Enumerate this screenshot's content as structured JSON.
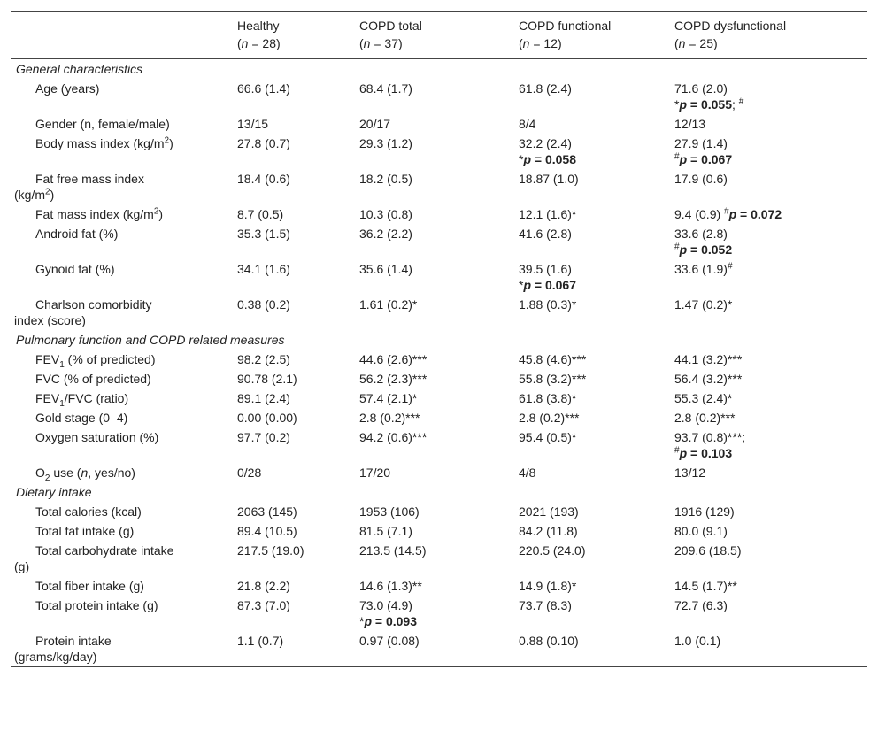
{
  "header": {
    "columns": [
      [
        "Healthy",
        [
          "(",
          {
            "t": "n",
            "f": "i"
          },
          " = 28)"
        ]
      ],
      [
        "COPD total",
        [
          "(",
          {
            "t": "n",
            "f": "i"
          },
          " = 37)"
        ]
      ],
      [
        "COPD functional",
        [
          "(",
          {
            "t": "n",
            "f": "i"
          },
          " = 12)"
        ]
      ],
      [
        "COPD dysfunctional",
        [
          "(",
          {
            "t": "n",
            "f": "i"
          },
          " = 25)"
        ]
      ]
    ]
  },
  "sections": [
    {
      "title": "General characteristics",
      "rows": [
        {
          "label": [
            "Age (years)"
          ],
          "cells": [
            "66.6 (1.4)",
            "68.4 (1.7)",
            "61.8 (2.4)",
            [
              "71.6 (2.0)",
              [
                "*",
                {
                  "t": "p",
                  "f": "bi"
                },
                {
                  "t": " = 0.055",
                  "f": "b"
                },
                "; ",
                {
                  "t": "#",
                  "f": "sup"
                }
              ]
            ]
          ]
        },
        {
          "label": [
            "Gender (n, female/male)"
          ],
          "cells": [
            "13/15",
            "20/17",
            "8/4",
            "12/13"
          ]
        },
        {
          "label": [
            [
              "Body mass index (kg/m",
              {
                "t": "2",
                "f": "sup"
              },
              ")"
            ]
          ],
          "cells": [
            "27.8 (0.7)",
            "29.3 (1.2)",
            [
              "32.2 (2.4)",
              [
                "*",
                {
                  "t": "p",
                  "f": "bi"
                },
                {
                  "t": " = 0.058",
                  "f": "b"
                }
              ]
            ],
            [
              "27.9 (1.4)",
              [
                {
                  "t": "#",
                  "f": "sup"
                },
                {
                  "t": "p",
                  "f": "bi"
                },
                {
                  "t": " = 0.067",
                  "f": "b"
                }
              ]
            ]
          ]
        },
        {
          "label": [
            "Fat free mass index",
            [
              "(kg/m",
              {
                "t": "2",
                "f": "sup"
              },
              ")"
            ]
          ],
          "cells": [
            "18.4 (0.6)",
            "18.2 (0.5)",
            "18.87 (1.0)",
            "17.9 (0.6)"
          ]
        },
        {
          "label": [
            [
              "Fat mass index (kg/m",
              {
                "t": "2",
                "f": "sup"
              },
              ")"
            ]
          ],
          "cells": [
            "8.7 (0.5)",
            "10.3 (0.8)",
            "12.1 (1.6)*",
            [
              [
                "9.4 (0.9) ",
                {
                  "t": "#",
                  "f": "sup"
                },
                {
                  "t": "p",
                  "f": "bi"
                },
                {
                  "t": " = 0.072",
                  "f": "b"
                }
              ]
            ]
          ]
        },
        {
          "label": [
            "Android fat (%)"
          ],
          "cells": [
            "35.3 (1.5)",
            "36.2 (2.2)",
            "41.6 (2.8)",
            [
              "33.6 (2.8)",
              [
                {
                  "t": "#",
                  "f": "sup"
                },
                {
                  "t": "p",
                  "f": "bi"
                },
                {
                  "t": " = 0.052",
                  "f": "b"
                }
              ]
            ]
          ]
        },
        {
          "label": [
            "Gynoid fat (%)"
          ],
          "cells": [
            "34.1 (1.6)",
            "35.6 (1.4)",
            [
              "39.5 (1.6)",
              [
                "*",
                {
                  "t": "p",
                  "f": "bi"
                },
                {
                  "t": " = 0.067",
                  "f": "b"
                }
              ]
            ],
            [
              [
                "33.6 (1.9)",
                {
                  "t": "#",
                  "f": "sup"
                }
              ]
            ]
          ]
        },
        {
          "label": [
            "Charlson comorbidity",
            "index (score)"
          ],
          "cells": [
            "0.38 (0.2)",
            "1.61 (0.2)*",
            "1.88 (0.3)*",
            "1.47 (0.2)*"
          ]
        }
      ]
    },
    {
      "title": "Pulmonary function and COPD related measures",
      "rows": [
        {
          "label": [
            [
              "FEV",
              {
                "t": "1",
                "f": "sub"
              },
              " (% of predicted)"
            ]
          ],
          "cells": [
            "98.2 (2.5)",
            "44.6 (2.6)***",
            "45.8 (4.6)***",
            "44.1 (3.2)***"
          ]
        },
        {
          "label": [
            "FVC (% of predicted)"
          ],
          "cells": [
            "90.78 (2.1)",
            "56.2 (2.3)***",
            "55.8 (3.2)***",
            "56.4 (3.2)***"
          ]
        },
        {
          "label": [
            [
              "FEV",
              {
                "t": "1",
                "f": "sub"
              },
              "/FVC (ratio)"
            ]
          ],
          "cells": [
            "89.1 (2.4)",
            "57.4 (2.1)*",
            "61.8 (3.8)*",
            "55.3 (2.4)*"
          ]
        },
        {
          "label": [
            "Gold stage (0–4)"
          ],
          "cells": [
            "0.00 (0.00)",
            "2.8 (0.2)***",
            "2.8 (0.2)***",
            "2.8 (0.2)***"
          ]
        },
        {
          "label": [
            "Oxygen saturation (%)"
          ],
          "cells": [
            "97.7 (0.2)",
            "94.2 (0.6)***",
            "95.4 (0.5)*",
            [
              "93.7 (0.8)***;",
              [
                {
                  "t": "#",
                  "f": "sup"
                },
                {
                  "t": "p",
                  "f": "bi"
                },
                {
                  "t": " = 0.103",
                  "f": "b"
                }
              ]
            ]
          ]
        },
        {
          "label": [
            [
              "O",
              {
                "t": "2",
                "f": "sub"
              },
              " use (",
              {
                "t": "n",
                "f": "i"
              },
              ", yes/no)"
            ]
          ],
          "cells": [
            "0/28",
            "17/20",
            "4/8",
            "13/12"
          ]
        }
      ]
    },
    {
      "title": "Dietary intake",
      "rows": [
        {
          "label": [
            "Total calories (kcal)"
          ],
          "cells": [
            "2063 (145)",
            "1953 (106)",
            "2021 (193)",
            "1916 (129)"
          ]
        },
        {
          "label": [
            "Total fat intake (g)"
          ],
          "cells": [
            "89.4 (10.5)",
            "81.5 (7.1)",
            "84.2 (11.8)",
            "80.0 (9.1)"
          ]
        },
        {
          "label": [
            "Total carbohydrate intake",
            "(g)"
          ],
          "cells": [
            "217.5 (19.0)",
            "213.5 (14.5)",
            "220.5 (24.0)",
            "209.6 (18.5)"
          ]
        },
        {
          "label": [
            "Total fiber intake (g)"
          ],
          "cells": [
            "21.8 (2.2)",
            "14.6 (1.3)**",
            "14.9 (1.8)*",
            "14.5 (1.7)**"
          ]
        },
        {
          "label": [
            "Total protein intake (g)"
          ],
          "cells": [
            "87.3 (7.0)",
            [
              "73.0 (4.9)",
              [
                "*",
                {
                  "t": "p",
                  "f": "bi"
                },
                {
                  "t": " = 0.093",
                  "f": "b"
                }
              ]
            ],
            "73.7 (8.3)",
            "72.7 (6.3)"
          ]
        },
        {
          "label": [
            "Protein intake",
            "(grams/kg/day)"
          ],
          "cells": [
            "1.1 (0.7)",
            "0.97 (0.08)",
            "0.88 (0.10)",
            "1.0 (0.1)"
          ]
        }
      ]
    }
  ]
}
